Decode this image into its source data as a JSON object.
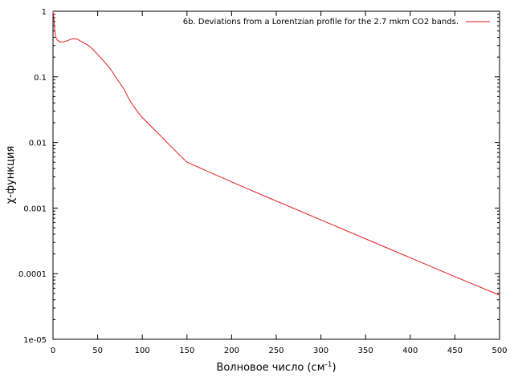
{
  "chart_data": {
    "type": "line",
    "title": "",
    "xlabel": "Волновое число (см",
    "xlabel_sup": "-1",
    "xlabel_suffix": ")",
    "ylabel": "χ-функция",
    "xlim": [
      0,
      500
    ],
    "ylim": [
      1e-05,
      1
    ],
    "yscale": "log",
    "grid": false,
    "legend_position": "top-right",
    "x_tick_labels": [
      "0",
      "50",
      "100",
      "150",
      "200",
      "250",
      "300",
      "350",
      "400",
      "450",
      "500"
    ],
    "y_tick_labels": [
      "1e-05",
      "0.0001",
      "0.001",
      "0.01",
      "0.1",
      "1"
    ],
    "series": [
      {
        "name": "6b. Deviations from a Lorentzian profile for the 2.7 mkm CO2 bands.",
        "color": "#e41a1c",
        "points": [
          [
            0,
            1.0
          ],
          [
            1,
            0.75
          ],
          [
            2,
            0.5
          ],
          [
            3,
            0.41
          ],
          [
            5,
            0.36
          ],
          [
            8,
            0.34
          ],
          [
            10,
            0.34
          ],
          [
            13,
            0.345
          ],
          [
            16,
            0.355
          ],
          [
            19,
            0.37
          ],
          [
            22,
            0.38
          ],
          [
            25,
            0.38
          ],
          [
            28,
            0.37
          ],
          [
            32,
            0.345
          ],
          [
            36,
            0.32
          ],
          [
            40,
            0.3
          ],
          [
            45,
            0.26
          ],
          [
            50,
            0.22
          ],
          [
            55,
            0.185
          ],
          [
            60,
            0.155
          ],
          [
            65,
            0.128
          ],
          [
            70,
            0.1
          ],
          [
            75,
            0.08
          ],
          [
            80,
            0.063
          ],
          [
            85,
            0.046
          ],
          [
            90,
            0.036
          ],
          [
            95,
            0.029
          ],
          [
            100,
            0.024
          ],
          [
            110,
            0.0175
          ],
          [
            120,
            0.0128
          ],
          [
            130,
            0.0093
          ],
          [
            140,
            0.0068
          ],
          [
            150,
            0.005
          ],
          [
            200,
            0.0025
          ],
          [
            250,
            0.00128
          ],
          [
            300,
            0.00066
          ],
          [
            350,
            0.00034
          ],
          [
            400,
            0.000175
          ],
          [
            450,
            9e-05
          ],
          [
            500,
            4.7e-05
          ]
        ]
      }
    ]
  }
}
